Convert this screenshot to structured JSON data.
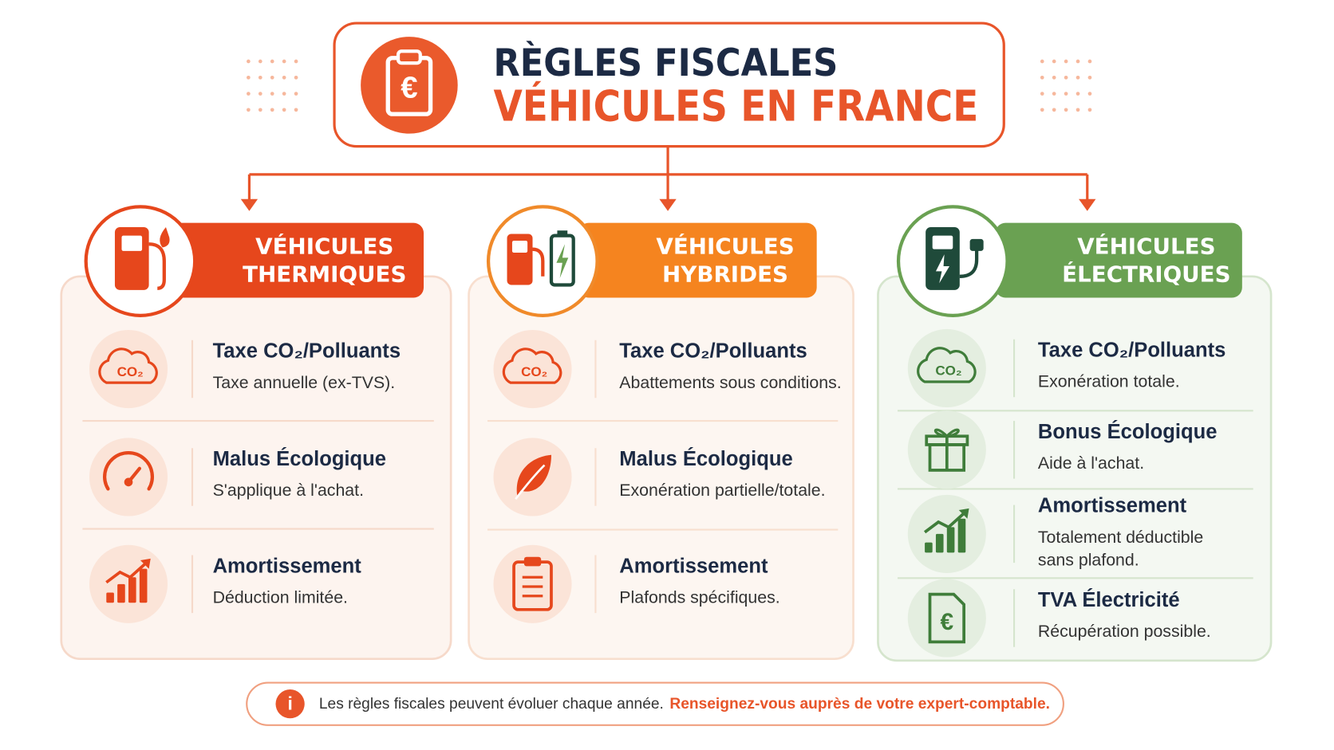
{
  "header": {
    "title_line1": "RÈGLES FISCALES",
    "title_line2": "VÉHICULES EN FRANCE",
    "icon_text": "€"
  },
  "columns": [
    {
      "title": [
        "VÉHICULES",
        "THERMIQUES"
      ],
      "items": [
        {
          "icon_text": "CO₂",
          "title": "Taxe CO₂/Polluants",
          "description": [
            "Taxe annuelle (ex-TVS)."
          ]
        },
        {
          "title": "Malus Écologique",
          "description": [
            "S'applique à l'achat."
          ]
        },
        {
          "title": "Amortissement",
          "description": [
            "Déduction limitée."
          ]
        }
      ]
    },
    {
      "title": [
        "VÉHICULES",
        "HYBRIDES"
      ],
      "items": [
        {
          "icon_text": "CO₂",
          "title": "Taxe CO₂/Polluants",
          "description": [
            "Abattements sous conditions."
          ]
        },
        {
          "title": "Malus Écologique",
          "description": [
            "Exonération partielle/totale."
          ]
        },
        {
          "title": "Amortissement",
          "description": [
            "Plafonds spécifiques."
          ]
        }
      ]
    },
    {
      "title": [
        "VÉHICULES",
        "ÉLECTRIQUES"
      ],
      "items": [
        {
          "icon_text": "CO₂",
          "title": "Taxe CO₂/Polluants",
          "description": [
            "Exonération totale."
          ]
        },
        {
          "title": "Bonus Écologique",
          "description": [
            "Aide à l'achat."
          ]
        },
        {
          "title": "Amortissement",
          "description": [
            "Totalement déductible",
            "sans plafond."
          ]
        },
        {
          "icon_text": "€",
          "title": "TVA Électricité",
          "description": [
            "Récupération possible."
          ]
        }
      ]
    }
  ],
  "footer": {
    "icon_text": "i",
    "text": "Les règles fiscales peuvent évoluer chaque année.",
    "highlight": "Renseignez-vous auprès de votre expert-comptable."
  }
}
